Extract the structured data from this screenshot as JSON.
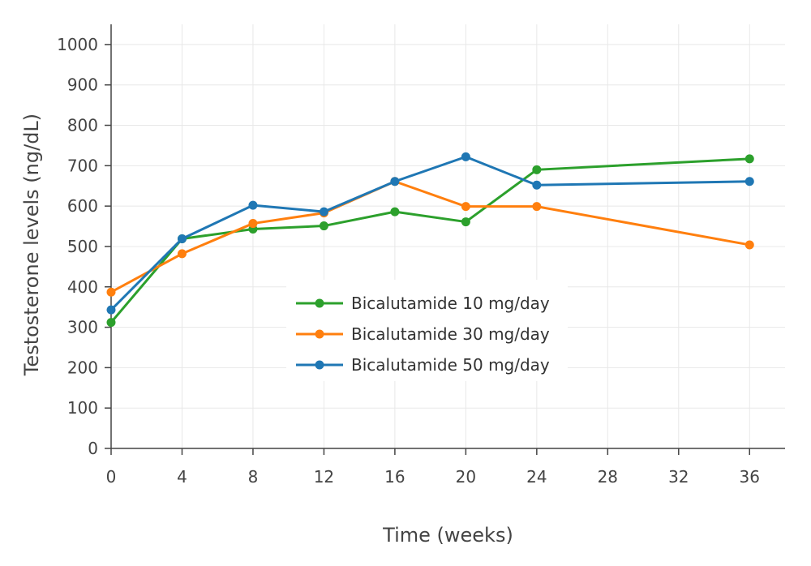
{
  "chart_data": {
    "type": "line",
    "title": "",
    "xlabel": "Time (weeks)",
    "ylabel": "Testosterone levels (ng/dL)",
    "xlim": [
      0,
      38
    ],
    "ylim": [
      0,
      1050
    ],
    "xticks": [
      0,
      4,
      8,
      12,
      16,
      20,
      24,
      28,
      32,
      36
    ],
    "yticks": [
      0,
      100,
      200,
      300,
      400,
      500,
      600,
      700,
      800,
      900,
      1000
    ],
    "grid": true,
    "legend_position": "center",
    "series": [
      {
        "name": "Bicalutamide 10 mg/day",
        "color": "#2ca02c",
        "x": [
          0,
          4,
          8,
          12,
          16,
          20,
          24,
          36
        ],
        "y": [
          312,
          519,
          543,
          551,
          586,
          561,
          690,
          717
        ]
      },
      {
        "name": "Bicalutamide 30 mg/day",
        "color": "#ff7f0e",
        "x": [
          0,
          4,
          8,
          12,
          16,
          20,
          24,
          36
        ],
        "y": [
          387,
          482,
          557,
          583,
          661,
          599,
          599,
          504
        ]
      },
      {
        "name": "Bicalutamide 50 mg/day",
        "color": "#1f77b4",
        "x": [
          0,
          4,
          8,
          12,
          16,
          20,
          24,
          36
        ],
        "y": [
          343,
          519,
          602,
          586,
          661,
          722,
          652,
          661
        ]
      }
    ]
  }
}
